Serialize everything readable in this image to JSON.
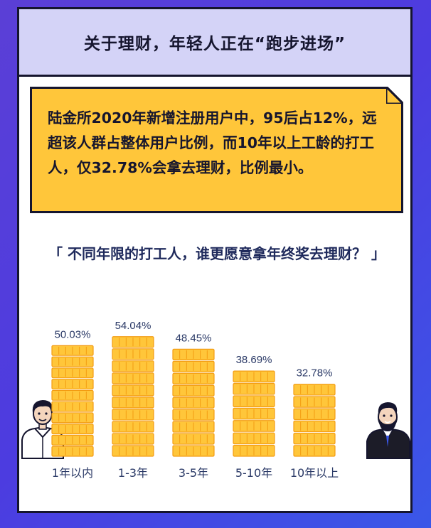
{
  "header": {
    "title": "关于理财，年轻人正在“跑步进场”"
  },
  "note": {
    "text": "陆金所2020年新增注册用户中，95后占12%，远超该人群占整体用户比例，而10年以上工龄的打工人，仅32.78%会拿去理财，比例最小。"
  },
  "chart_title": "「 不同年限的打工人，谁更愿意拿年终奖去理财？ 」",
  "colors": {
    "background": "#4c3ce0",
    "header_bg": "#d4d3f7",
    "note_bg": "#ffc63a",
    "bar_fill": "#ffc63a",
    "bar_stroke": "#f39c12",
    "text_dark": "#15152e",
    "label_text": "#2b3a67"
  },
  "icons": {
    "left": "young-man-icon",
    "right": "bearded-man-icon"
  },
  "chart_data": {
    "type": "bar",
    "title": "「 不同年限的打工人，谁更愿意拿年终奖去理财？ 」",
    "categories": [
      "1年以内",
      "1-3年",
      "3-5年",
      "5-10年",
      "10年以上"
    ],
    "values": [
      50.03,
      54.04,
      48.45,
      38.69,
      32.78
    ],
    "value_labels": [
      "50.03%",
      "54.04%",
      "48.45%",
      "38.69%",
      "32.78%"
    ],
    "ylim": [
      0,
      60
    ],
    "grid": false,
    "legend": false
  }
}
